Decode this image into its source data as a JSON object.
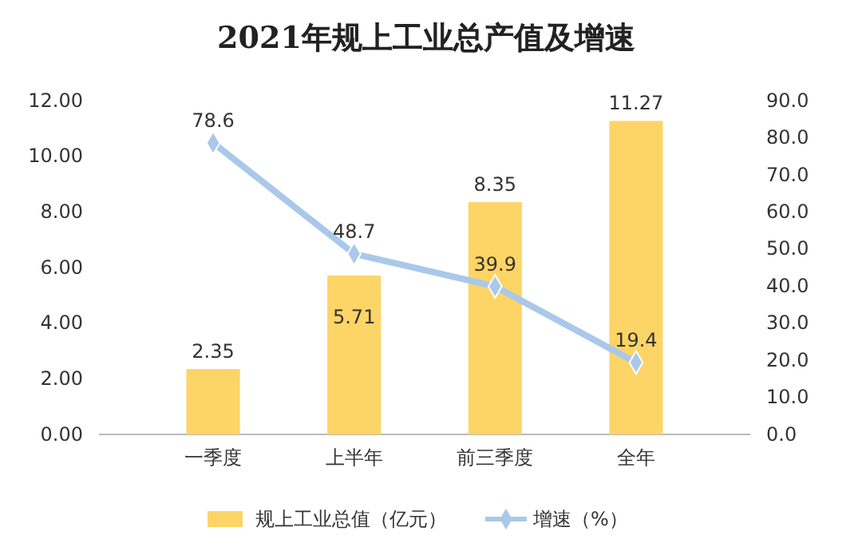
{
  "chart_data": {
    "type": "bar",
    "title": "2021年规上工业总产值及增速",
    "categories": [
      "一季度",
      "上半年",
      "前三季度",
      "全年"
    ],
    "series": [
      {
        "name": "规上工业总值（亿元）",
        "color": "#fdd466",
        "values": [
          2.35,
          5.71,
          8.35,
          11.27
        ]
      },
      {
        "name": "增速（%）",
        "type": "line",
        "axis": "y2",
        "color": "#a9c8ea",
        "values": [
          78.6,
          48.7,
          39.9,
          19.4
        ]
      }
    ],
    "ylim": [
      0,
      12
    ],
    "yticks": [
      {
        "value": 0,
        "label": "0.00"
      },
      {
        "value": 2,
        "label": "2.00"
      },
      {
        "value": 4,
        "label": "4.00"
      },
      {
        "value": 6,
        "label": "6.00"
      },
      {
        "value": 8,
        "label": "8.00"
      },
      {
        "value": 10,
        "label": "10.00"
      },
      {
        "value": 12,
        "label": "12.00"
      }
    ],
    "y2lim": [
      0,
      90
    ],
    "y2ticks": [
      {
        "value": 0,
        "label": "0.0"
      },
      {
        "value": 10,
        "label": "10.0"
      },
      {
        "value": 20,
        "label": "20.0"
      },
      {
        "value": 30,
        "label": "30.0"
      },
      {
        "value": 40,
        "label": "40.0"
      },
      {
        "value": 50,
        "label": "50.0"
      },
      {
        "value": 60,
        "label": "60.0"
      },
      {
        "value": 70,
        "label": "70.0"
      },
      {
        "value": 80,
        "label": "80.0"
      },
      {
        "value": 90,
        "label": "90.0"
      }
    ],
    "data_labels": true,
    "marker": "diamond",
    "legend": "bottom",
    "grid": false
  }
}
